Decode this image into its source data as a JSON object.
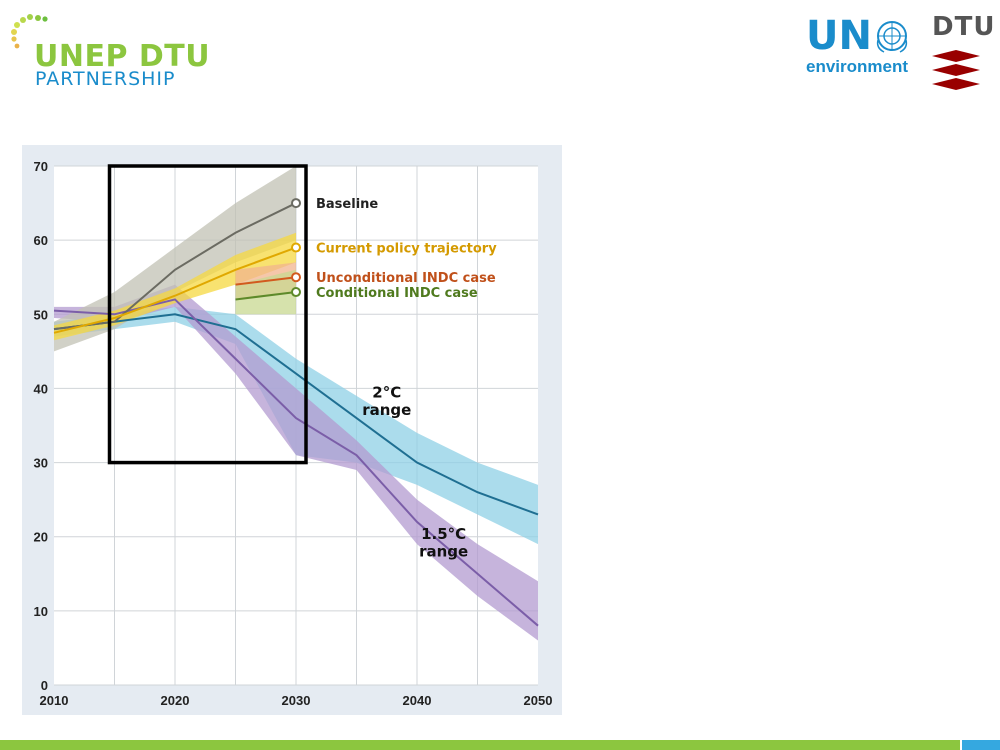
{
  "brand": {
    "line1": "UNEP DTU",
    "line2": "PARTNERSHIP",
    "un_text": "UN",
    "environment_text": "environment",
    "dtu_text": "DTU",
    "color_green": "#8cc63f",
    "color_blue": "#1a8ccb",
    "color_dtu_red": "#990000"
  },
  "chart_data": {
    "type": "line",
    "title": "",
    "xlabel": "",
    "ylabel": "",
    "xlim": [
      2010,
      2050
    ],
    "ylim": [
      0,
      70
    ],
    "x_ticks": [
      2010,
      2020,
      2030,
      2040,
      2050
    ],
    "y_ticks": [
      0,
      10,
      20,
      30,
      40,
      50,
      60,
      70
    ],
    "grid": true,
    "series": [
      {
        "name": "Baseline",
        "color": "#6b6b62",
        "band_color": "#c2c2b4",
        "x": [
          2010,
          2015,
          2020,
          2025,
          2030
        ],
        "values": [
          48,
          49,
          56,
          61,
          65
        ],
        "lower": [
          45,
          48,
          53,
          57,
          60
        ],
        "upper": [
          49,
          53,
          59,
          65,
          70
        ]
      },
      {
        "name": "Current policy trajectory",
        "color": "#e0a800",
        "band_color": "#f5d840",
        "x": [
          2010,
          2015,
          2020,
          2025,
          2030
        ],
        "values": [
          47.5,
          49.5,
          52.5,
          56,
          59
        ],
        "lower": [
          46.5,
          48.5,
          51.5,
          54,
          57
        ],
        "upper": [
          48.5,
          50.5,
          53.5,
          58,
          61
        ]
      },
      {
        "name": "Unconditional INDC case",
        "color": "#d25a1e",
        "band_color": "#f2b48e",
        "x": [
          2025,
          2030
        ],
        "values": [
          54,
          55
        ],
        "lower": [
          52,
          53
        ],
        "upper": [
          56,
          57
        ]
      },
      {
        "name": "Conditional INDC case",
        "color": "#5e8a2a",
        "band_color": "#c8d890",
        "x": [
          2025,
          2030
        ],
        "values": [
          52,
          53
        ],
        "lower": [
          50,
          50
        ],
        "upper": [
          54,
          56
        ]
      },
      {
        "name": "2°C range",
        "color": "#1f6f92",
        "band_color": "#8fd0e6",
        "x": [
          2010,
          2015,
          2020,
          2025,
          2030,
          2035,
          2040,
          2045,
          2050
        ],
        "values": [
          48,
          49,
          50,
          48,
          42,
          36,
          30,
          26,
          23
        ],
        "lower": [
          47,
          48,
          49,
          46,
          31,
          30,
          27,
          23,
          19
        ],
        "upper": [
          49,
          50,
          51,
          50,
          44,
          39,
          34,
          30,
          27
        ]
      },
      {
        "name": "1.5°C range",
        "color": "#7b5ea8",
        "band_color": "#b39bd0",
        "x": [
          2010,
          2015,
          2020,
          2025,
          2030,
          2035,
          2040,
          2045,
          2050
        ],
        "values": [
          50.5,
          50,
          52,
          44,
          36,
          31,
          22,
          15,
          8
        ],
        "lower": [
          49.5,
          49,
          51,
          42,
          31,
          29,
          19,
          12,
          6
        ],
        "upper": [
          51,
          51,
          54,
          47,
          40,
          33,
          25,
          19,
          14
        ]
      }
    ],
    "legend_labels": {
      "baseline": "Baseline",
      "current_policy": "Current policy trajectory",
      "unconditional": "Unconditional INDC case",
      "conditional": "Conditional INDC case",
      "range_2c_line1": "2°C",
      "range_2c_line2": "range",
      "range_15c_line1": "1.5°C",
      "range_15c_line2": "range"
    },
    "highlight_box": {
      "x_range": [
        2015,
        2030
      ],
      "y_range": [
        30,
        70
      ]
    }
  }
}
